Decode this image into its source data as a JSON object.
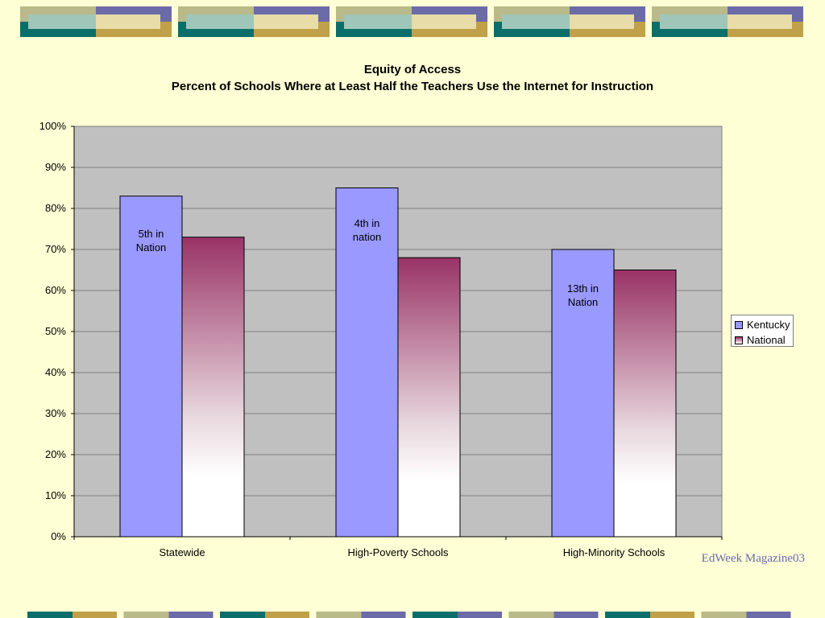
{
  "colors": {
    "background": "#ffffd5",
    "plot_area": "#c0c0c0",
    "kentucky": "#9999ff",
    "national_top": "#993366",
    "national_bottom": "#ffffff"
  },
  "chart_data": {
    "type": "bar",
    "title": "Equity of Access",
    "subtitle": "Percent of Schools Where at Least Half the Teachers Use the Internet for Instruction",
    "categories": [
      "Statewide",
      "High-Poverty Schools",
      "High-Minority Schools"
    ],
    "series": [
      {
        "name": "Kentucky",
        "values": [
          83,
          85,
          70
        ]
      },
      {
        "name": "National",
        "values": [
          73,
          68,
          65
        ]
      }
    ],
    "annotations": [
      {
        "category": "Statewide",
        "series": "Kentucky",
        "line1": "5th in",
        "line2": "Nation"
      },
      {
        "category": "High-Poverty Schools",
        "series": "Kentucky",
        "line1": "4th in",
        "line2": "nation"
      },
      {
        "category": "High-Minority Schools",
        "series": "Kentucky",
        "line1": "13th in",
        "line2": "Nation"
      }
    ],
    "ylim": [
      0,
      100
    ],
    "yticks": [
      "0%",
      "10%",
      "20%",
      "30%",
      "40%",
      "50%",
      "60%",
      "70%",
      "80%",
      "90%",
      "100%"
    ],
    "grid": true,
    "legend_position": "right"
  },
  "source_note": "EdWeek Magazine03"
}
